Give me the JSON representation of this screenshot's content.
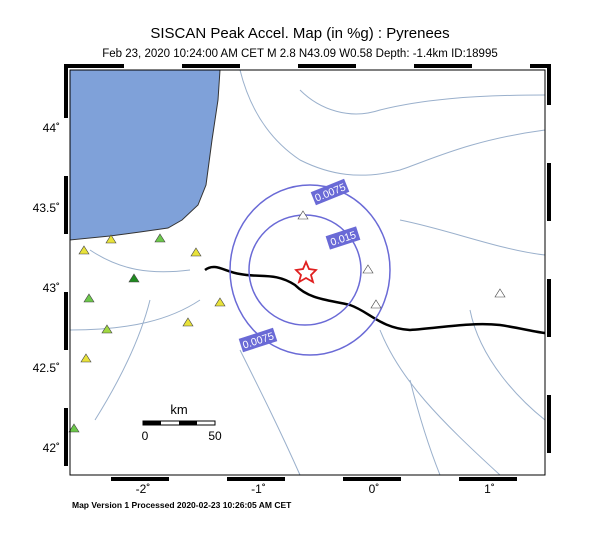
{
  "header": {
    "title": "SISCAN Peak Accel. Map (in %g) : Pyrenees",
    "subtitle": "Feb 23, 2020 10:24:00 AM CET   M 2.8   N43.09 W0.58   Depth: -1.4km   ID:18995"
  },
  "axes": {
    "x_labels": [
      "-2˚",
      "-1˚",
      "0˚",
      "1˚"
    ],
    "y_labels": [
      "44˚",
      "43.5˚",
      "43˚",
      "42.5˚",
      "42˚"
    ]
  },
  "contours": [
    "0.0075",
    "0.015",
    "0.0075"
  ],
  "scale": {
    "unit": "km",
    "start": "0",
    "end": "50"
  },
  "footer": "Map Version 1 Processed 2020-02-23 10:26:05 AM CET"
}
